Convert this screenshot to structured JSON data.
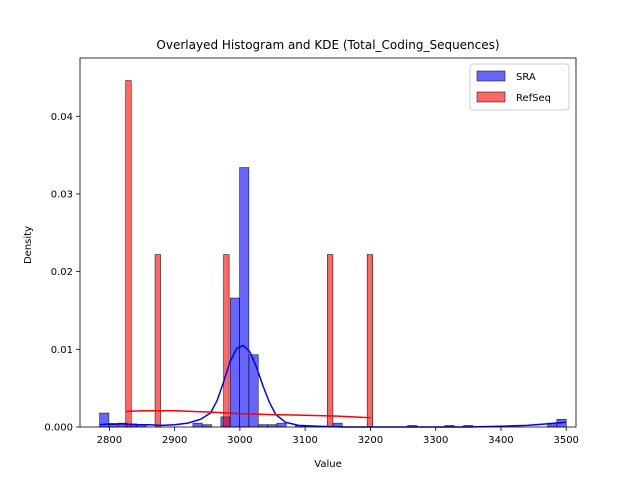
{
  "chart_data": {
    "type": "histogram",
    "title": "Overlayed Histogram and KDE (Total_Coding_Sequences)",
    "xlabel": "Value",
    "ylabel": "Density",
    "xlim": [
      2755,
      3515
    ],
    "ylim": [
      0,
      0.0475
    ],
    "xticks": [
      2800,
      2900,
      3000,
      3100,
      3200,
      3300,
      3400,
      3500
    ],
    "yticks": [
      0.0,
      0.01,
      0.02,
      0.03,
      0.04
    ],
    "ytick_labels": [
      "0.000",
      "0.01",
      "0.02",
      "0.03",
      "0.04"
    ],
    "legend_position": "top-right",
    "grid": false,
    "series": [
      {
        "name": "SRA",
        "color": "#0000ff",
        "bar_edges": [
          2785.0,
          2799.3,
          2813.6,
          2827.9,
          2842.2,
          2856.5,
          2870.8,
          2885.1,
          2899.4,
          2913.7,
          2928.0,
          2942.3,
          2956.6,
          2970.9,
          2985.2,
          2999.5,
          3013.8,
          3028.1,
          3042.4,
          3056.7,
          3071.0,
          3085.3,
          3099.6,
          3113.9,
          3128.2,
          3142.5,
          3156.8,
          3171.1,
          3185.4,
          3199.7,
          3214.0,
          3228.3,
          3242.6,
          3256.9,
          3271.2,
          3285.5,
          3299.8,
          3314.1,
          3328.4,
          3342.7,
          3357.0,
          3371.3,
          3385.6,
          3399.9,
          3414.2,
          3428.5,
          3442.8,
          3457.1,
          3471.4,
          3485.7,
          3500.0
        ],
        "bar_heights": [
          0.0018,
          0.0003,
          0.0005,
          0.0004,
          0.0003,
          0.0,
          0.0,
          0.0,
          0.0,
          0.0,
          0.0005,
          0.0003,
          0.0,
          0.0013,
          0.0166,
          0.0334,
          0.0093,
          0.0003,
          0.0003,
          0.0005,
          0.0,
          0.0002,
          0.0,
          0.0,
          0.0,
          0.0005,
          0.0,
          0.0,
          0.0,
          0.0,
          0.0,
          0.0,
          0.0,
          0.0002,
          0.0,
          0.0,
          0.0,
          0.0002,
          0.0,
          0.0002,
          0.0,
          0.0,
          0.0,
          0.0,
          0.0,
          0.0,
          0.0,
          0.0,
          0.0005,
          0.001
        ],
        "kde": {
          "x": [
            2785,
            2800,
            2820,
            2840,
            2860,
            2880,
            2900,
            2920,
            2940,
            2955,
            2965,
            2975,
            2985,
            2995,
            3005,
            3015,
            3025,
            3035,
            3045,
            3055,
            3070,
            3090,
            3120,
            3160,
            3200,
            3250,
            3300,
            3350,
            3400,
            3440,
            3470,
            3500
          ],
          "y": [
            0.0003,
            0.0004,
            0.0004,
            0.0003,
            0.0003,
            0.0002,
            0.0003,
            0.0005,
            0.001,
            0.0018,
            0.0034,
            0.0058,
            0.0084,
            0.0101,
            0.0105,
            0.0097,
            0.0078,
            0.0054,
            0.0032,
            0.0016,
            0.0006,
            0.0002,
            0.0001,
            0.0,
            0.0,
            0.0,
            0.0,
            0.0,
            0.0001,
            0.0002,
            0.0004,
            0.0006
          ]
        }
      },
      {
        "name": "RefSeq",
        "color": "#ff0000",
        "bars": [
          {
            "x0": 2825.0,
            "x1": 2833.5,
            "value": 0.0446
          },
          {
            "x0": 2870.0,
            "x1": 2878.5,
            "value": 0.0222
          },
          {
            "x0": 2975.0,
            "x1": 2983.5,
            "value": 0.0222
          },
          {
            "x0": 3134.0,
            "x1": 3142.5,
            "value": 0.0222
          },
          {
            "x0": 3195.0,
            "x1": 3203.5,
            "value": 0.0222
          }
        ],
        "kde": {
          "x": [
            2825,
            2850,
            2880,
            2900,
            2930,
            2960,
            3000,
            3050,
            3100,
            3150,
            3200
          ],
          "y": [
            0.002,
            0.0021,
            0.0021,
            0.0021,
            0.002,
            0.0019,
            0.0017,
            0.0016,
            0.0015,
            0.0014,
            0.0012
          ]
        }
      }
    ]
  }
}
